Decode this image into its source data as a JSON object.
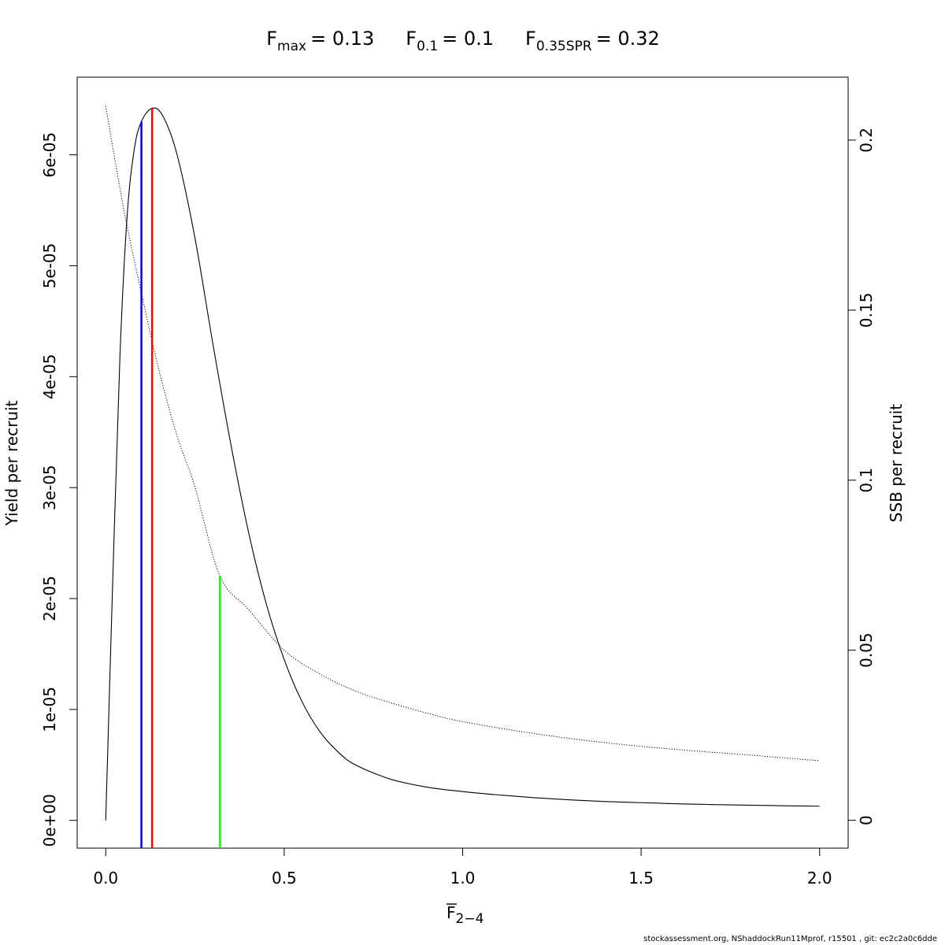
{
  "title": {
    "fmax": {
      "main": "F",
      "sub": "max",
      "value": "= 0.13"
    },
    "f01": {
      "main": "F",
      "sub": "0.1",
      "value": "= 0.1"
    },
    "fspr": {
      "main": "F",
      "sub": "0.35SPR",
      "value": "= 0.32"
    }
  },
  "footer": "stockassessment.org, NShaddockRun11Mprof, r15501 , git: ec2c2a0c6dde",
  "chart_data": {
    "type": "line",
    "xlabel": {
      "main": "F",
      "sub": "2−4",
      "overline": true
    },
    "ylabel": "Yield per recruit",
    "y2label": "SSB per recruit",
    "xlim": [
      -0.08,
      2.08
    ],
    "ylim": [
      -2.5e-06,
      6.7e-05
    ],
    "y2lim": [
      -0.0082,
      0.2185
    ],
    "x_ticks": [
      {
        "value": 0.0,
        "label": "0.0"
      },
      {
        "value": 0.5,
        "label": "0.5"
      },
      {
        "value": 1.0,
        "label": "1.0"
      },
      {
        "value": 1.5,
        "label": "1.5"
      },
      {
        "value": 2.0,
        "label": "2.0"
      }
    ],
    "y_ticks": [
      {
        "value": 0,
        "label": "0e+00"
      },
      {
        "value": 1e-05,
        "label": "1e-05"
      },
      {
        "value": 2e-05,
        "label": "2e-05"
      },
      {
        "value": 3e-05,
        "label": "3e-05"
      },
      {
        "value": 4e-05,
        "label": "4e-05"
      },
      {
        "value": 5e-05,
        "label": "5e-05"
      },
      {
        "value": 6e-05,
        "label": "6e-05"
      }
    ],
    "y2_ticks": [
      {
        "value": 0,
        "label": "0"
      },
      {
        "value": 0.05,
        "label": "0.05"
      },
      {
        "value": 0.1,
        "label": "0.1"
      },
      {
        "value": 0.15,
        "label": "0.15"
      },
      {
        "value": 0.2,
        "label": "0.2"
      }
    ],
    "series": [
      {
        "axis": "left",
        "style": "solid",
        "color": "#000000",
        "x": [
          0.0,
          0.02,
          0.04,
          0.06,
          0.08,
          0.1,
          0.13,
          0.16,
          0.2,
          0.25,
          0.3,
          0.35,
          0.4,
          0.45,
          0.5,
          0.55,
          0.6,
          0.65,
          0.7,
          0.8,
          0.9,
          1.0,
          1.1,
          1.2,
          1.3,
          1.4,
          1.5,
          1.6,
          1.7,
          1.8,
          1.9,
          2.0
        ],
        "y": [
          0.0,
          2.2e-05,
          4.2e-05,
          5.45e-05,
          6.05e-05,
          6.3e-05,
          6.42e-05,
          6.35e-05,
          6e-05,
          5.25e-05,
          4.3e-05,
          3.4e-05,
          2.6e-05,
          1.95e-05,
          1.45e-05,
          1.07e-05,
          8e-06,
          6.2e-06,
          5e-06,
          3.7e-06,
          3e-06,
          2.6e-06,
          2.3e-06,
          2.05e-06,
          1.85e-06,
          1.7e-06,
          1.6e-06,
          1.5e-06,
          1.43e-06,
          1.37e-06,
          1.32e-06,
          1.28e-06
        ]
      },
      {
        "axis": "right",
        "style": "dotted",
        "color": "#000000",
        "x": [
          0.0,
          0.05,
          0.1,
          0.15,
          0.2,
          0.25,
          0.32,
          0.4,
          0.5,
          0.6,
          0.7,
          0.8,
          0.9,
          1.0,
          1.2,
          1.4,
          1.6,
          1.8,
          2.0
        ],
        "y": [
          0.21,
          0.18,
          0.155,
          0.132,
          0.113,
          0.098,
          0.0718,
          0.062,
          0.05,
          0.043,
          0.038,
          0.0345,
          0.0315,
          0.029,
          0.0255,
          0.0228,
          0.0208,
          0.0192,
          0.0175
        ]
      }
    ],
    "reference_lines": [
      {
        "name": "F0.1",
        "x": 0.1,
        "y_top": 6.3e-05,
        "color": "#0000ff"
      },
      {
        "name": "Fmax",
        "x": 0.13,
        "y_top": 6.42e-05,
        "color": "#ff0000"
      },
      {
        "name": "F0.35SPR",
        "x": 0.32,
        "y_top": 2.2e-05,
        "color": "#00ff00"
      }
    ]
  }
}
